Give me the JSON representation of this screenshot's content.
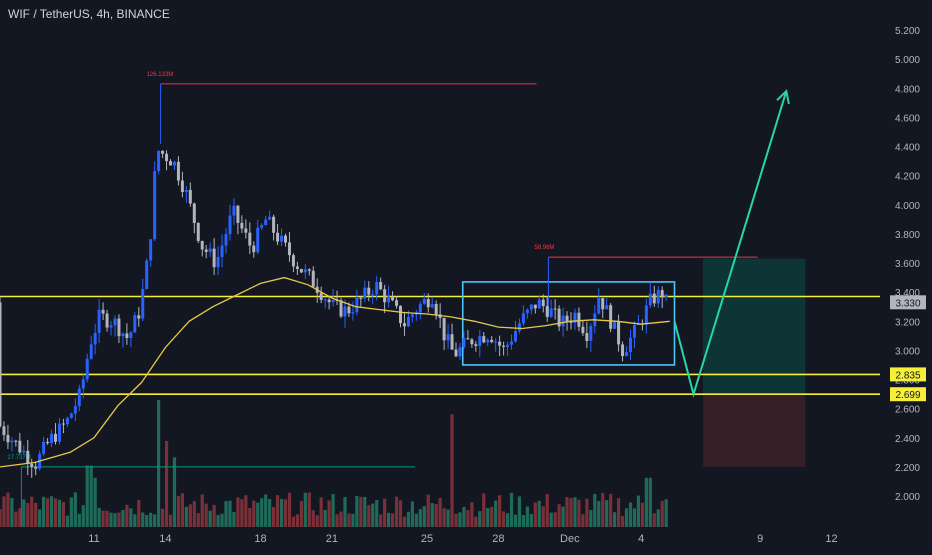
{
  "header": {
    "title": "WIF / TetherUS, 4h, BINANCE"
  },
  "colors": {
    "background": "#131722",
    "up": "#2962ff",
    "down": "#b2b5be",
    "ma": "#e6c84a",
    "level": "#f5ef3a",
    "box": "#4fc3f7",
    "arrow": "#26d7a5",
    "target_zone": "#0d3b3a",
    "stop_zone": "#3b1f27",
    "vol_up": "#1f6b5a",
    "vol_down": "#7a3038",
    "axis_text": "#b2b5be",
    "grid": "#1e222d"
  },
  "chart_data": {
    "type": "candlestick",
    "title": "WIF / TetherUS, 4h, BINANCE",
    "y_ticks": [
      "2.000",
      "2.200",
      "2.400",
      "2.600",
      "2.800",
      "3.000",
      "3.200",
      "3.400",
      "3.600",
      "3.800",
      "4.000",
      "4.200",
      "4.400",
      "4.600",
      "4.800",
      "5.000",
      "5.200"
    ],
    "ylim": [
      1.78,
      5.33
    ],
    "x_ticks": [
      "11",
      "14",
      "18",
      "21",
      "25",
      "28",
      "Dec",
      "4",
      "9",
      "12"
    ],
    "x_tick_days": [
      11,
      14,
      18,
      21,
      25,
      28,
      31,
      34,
      39,
      42
    ],
    "xlim_days": [
      7.05,
      43.4
    ],
    "last_candle_day": 35.2,
    "price_labels": [
      {
        "text": "3.330",
        "value": 3.33,
        "kind": "current"
      },
      {
        "text": "2.835",
        "value": 2.835,
        "kind": "level"
      },
      {
        "text": "2.699",
        "value": 2.699,
        "kind": "level"
      }
    ],
    "horizontal_levels": [
      3.37,
      2.835,
      2.699
    ],
    "consolidation_box": {
      "x0_day": 26.5,
      "x1_day": 35.4,
      "low": 2.9,
      "high": 3.47
    },
    "projection_arrow": {
      "points": [
        {
          "day": 35.4,
          "price": 3.2
        },
        {
          "day": 36.2,
          "price": 2.699
        },
        {
          "day": 40.1,
          "price": 4.78
        }
      ]
    },
    "target_zone": {
      "x0_day": 36.6,
      "x1_day": 40.9,
      "low": 2.699,
      "high": 3.63
    },
    "stop_zone": {
      "x0_day": 36.6,
      "x1_day": 40.9,
      "low": 2.2,
      "high": 2.699
    },
    "annotations": [
      {
        "text": "126.133M",
        "day": 13.8,
        "price": 4.83,
        "x1_day": 29.6,
        "color": "#f23645"
      },
      {
        "text": "58.96M",
        "day": 30.1,
        "price": 3.64,
        "x1_day": 38.9,
        "color": "#f23645"
      },
      {
        "text": "27.737M",
        "day": 7.95,
        "price": 2.2,
        "x1_day": 24.5,
        "color": "#089981"
      }
    ],
    "price_anchors": [
      {
        "day": 7.1,
        "price": 2.5
      },
      {
        "day": 8.0,
        "price": 2.34
      },
      {
        "day": 8.7,
        "price": 2.22
      },
      {
        "day": 9.3,
        "price": 2.38
      },
      {
        "day": 10.0,
        "price": 2.5
      },
      {
        "day": 10.6,
        "price": 2.7
      },
      {
        "day": 11.0,
        "price": 3.05
      },
      {
        "day": 11.4,
        "price": 3.23
      },
      {
        "day": 12.0,
        "price": 3.2
      },
      {
        "day": 12.6,
        "price": 3.08
      },
      {
        "day": 13.1,
        "price": 3.28
      },
      {
        "day": 13.5,
        "price": 3.7
      },
      {
        "day": 13.8,
        "price": 4.38
      },
      {
        "day": 14.5,
        "price": 4.3
      },
      {
        "day": 15.0,
        "price": 4.1
      },
      {
        "day": 15.7,
        "price": 3.72
      },
      {
        "day": 16.3,
        "price": 3.6
      },
      {
        "day": 17.0,
        "price": 3.95
      },
      {
        "day": 17.8,
        "price": 3.7
      },
      {
        "day": 18.4,
        "price": 3.9
      },
      {
        "day": 19.0,
        "price": 3.75
      },
      {
        "day": 19.8,
        "price": 3.57
      },
      {
        "day": 20.5,
        "price": 3.45
      },
      {
        "day": 21.2,
        "price": 3.3
      },
      {
        "day": 21.8,
        "price": 3.27
      },
      {
        "day": 22.4,
        "price": 3.35
      },
      {
        "day": 23.0,
        "price": 3.45
      },
      {
        "day": 23.6,
        "price": 3.33
      },
      {
        "day": 24.2,
        "price": 3.18
      },
      {
        "day": 24.8,
        "price": 3.3
      },
      {
        "day": 25.4,
        "price": 3.38
      },
      {
        "day": 25.9,
        "price": 3.1
      },
      {
        "day": 26.3,
        "price": 2.97
      },
      {
        "day": 27.0,
        "price": 3.07
      },
      {
        "day": 27.8,
        "price": 3.12
      },
      {
        "day": 28.4,
        "price": 3.0
      },
      {
        "day": 29.1,
        "price": 3.2
      },
      {
        "day": 29.8,
        "price": 3.33
      },
      {
        "day": 30.3,
        "price": 3.28
      },
      {
        "day": 30.8,
        "price": 3.18
      },
      {
        "day": 31.4,
        "price": 3.25
      },
      {
        "day": 31.9,
        "price": 3.12
      },
      {
        "day": 32.4,
        "price": 3.38
      },
      {
        "day": 32.9,
        "price": 3.2
      },
      {
        "day": 33.4,
        "price": 3.0
      },
      {
        "day": 34.0,
        "price": 3.15
      },
      {
        "day": 34.6,
        "price": 3.35
      },
      {
        "day": 35.1,
        "price": 3.4
      },
      {
        "day": 35.2,
        "price": 3.33
      }
    ],
    "moving_average": [
      {
        "day": 7.05,
        "price": 2.2
      },
      {
        "day": 8.5,
        "price": 2.23
      },
      {
        "day": 10.0,
        "price": 2.3
      },
      {
        "day": 11.0,
        "price": 2.4
      },
      {
        "day": 12.0,
        "price": 2.62
      },
      {
        "day": 13.0,
        "price": 2.78
      },
      {
        "day": 14.0,
        "price": 3.02
      },
      {
        "day": 15.0,
        "price": 3.2
      },
      {
        "day": 16.0,
        "price": 3.3
      },
      {
        "day": 17.0,
        "price": 3.38
      },
      {
        "day": 18.0,
        "price": 3.46
      },
      {
        "day": 19.0,
        "price": 3.5
      },
      {
        "day": 20.0,
        "price": 3.45
      },
      {
        "day": 21.0,
        "price": 3.36
      },
      {
        "day": 22.0,
        "price": 3.3
      },
      {
        "day": 23.0,
        "price": 3.28
      },
      {
        "day": 24.0,
        "price": 3.26
      },
      {
        "day": 25.0,
        "price": 3.25
      },
      {
        "day": 26.0,
        "price": 3.23
      },
      {
        "day": 27.0,
        "price": 3.2
      },
      {
        "day": 28.0,
        "price": 3.16
      },
      {
        "day": 29.0,
        "price": 3.15
      },
      {
        "day": 30.0,
        "price": 3.17
      },
      {
        "day": 31.0,
        "price": 3.2
      },
      {
        "day": 32.0,
        "price": 3.21
      },
      {
        "day": 33.0,
        "price": 3.2
      },
      {
        "day": 34.0,
        "price": 3.18
      },
      {
        "day": 35.2,
        "price": 3.2
      }
    ],
    "volume_spikes": [
      {
        "day": 13.7,
        "level": 0.62
      },
      {
        "day": 14.0,
        "level": 0.42
      },
      {
        "day": 14.4,
        "level": 0.34
      },
      {
        "day": 26.0,
        "level": 0.55
      },
      {
        "day": 10.8,
        "level": 0.3
      },
      {
        "day": 11.1,
        "level": 0.24
      },
      {
        "day": 34.3,
        "level": 0.24
      }
    ]
  }
}
